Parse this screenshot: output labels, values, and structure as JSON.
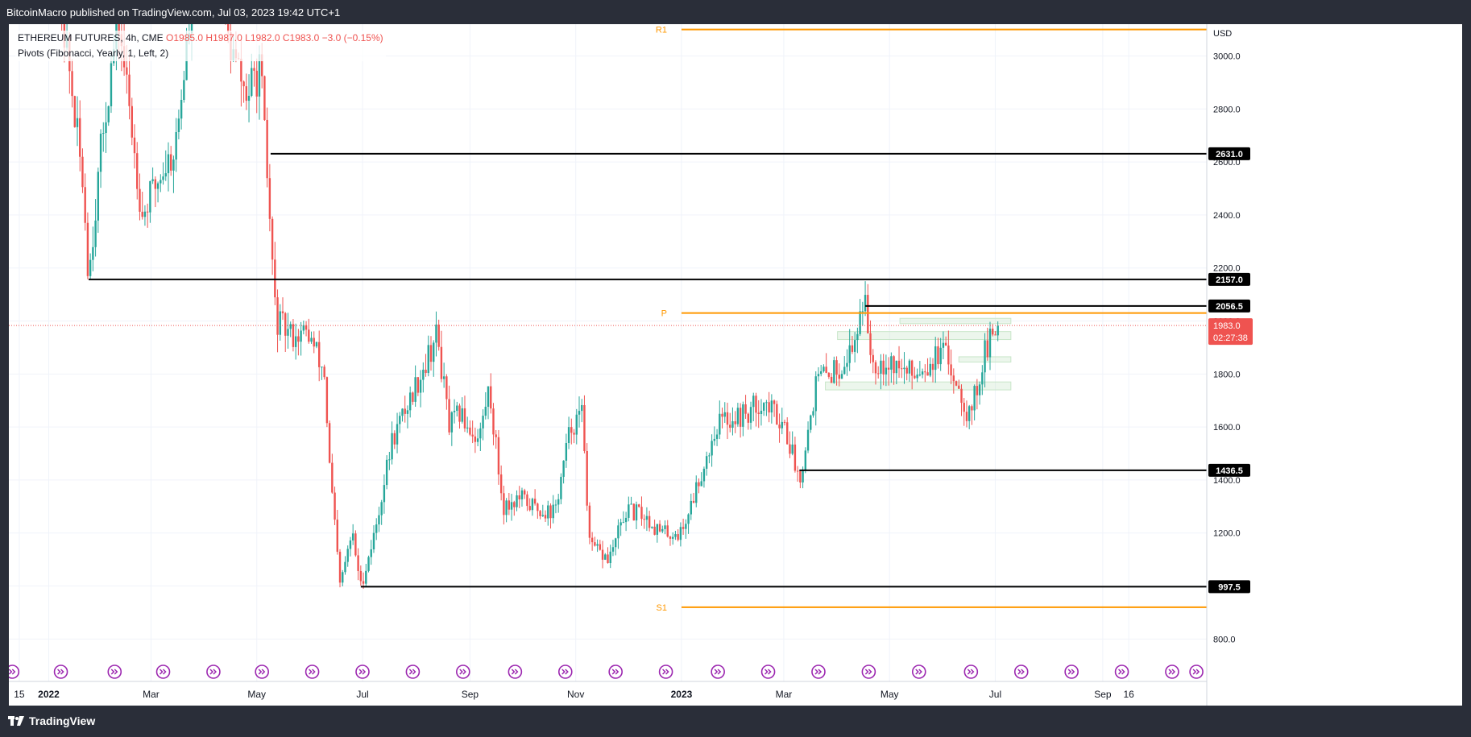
{
  "header": {
    "publisher": "BitcoinMacro published on TradingView.com, Jul 03, 2023 19:42 UTC+1"
  },
  "legend": {
    "symbol": "ETHEREUM FUTURES, 4h, CME",
    "ohlc_open": "O1985.0",
    "ohlc_high": "H1987.0",
    "ohlc_low": "L1982.0",
    "ohlc_close": "C1983.0",
    "change": "−3.0 (−0.15%)",
    "indicator": "Pivots (Fibonacci, Yearly, 1, Left, 2)"
  },
  "footer": {
    "brand": "TradingView"
  },
  "colors": {
    "up": "#26a69a",
    "down": "#ef5350",
    "pivot": "#ff9800",
    "level_line": "#000000",
    "grid": "#f0f3fa",
    "axis_text": "#131722",
    "current_price_bg": "#ef5350",
    "event_icon": "#9c27b0",
    "zone_fill": "#c8e6c9"
  },
  "chart_data": {
    "type": "candlestick",
    "currency": "USD",
    "ylim": [
      640,
      3120
    ],
    "y_ticks": [
      800,
      1000,
      1200,
      1400,
      1600,
      1800,
      2000,
      2200,
      2400,
      2600,
      2800,
      3000
    ],
    "y_tick_labels": [
      "800.0",
      "1000.0",
      "1200.0",
      "1400.0",
      "1600.0",
      "1800.0",
      "2000.0",
      "2200.0",
      "2400.0",
      "2600.0",
      "2800.0",
      "3000.0"
    ],
    "x_range": [
      "2021-12-09",
      "2023-10-31"
    ],
    "x_ticks": [
      {
        "date": "2021-12-15",
        "label": "15",
        "bold": false
      },
      {
        "date": "2022-01-01",
        "label": "2022",
        "bold": true
      },
      {
        "date": "2022-03-01",
        "label": "Mar",
        "bold": false
      },
      {
        "date": "2022-05-01",
        "label": "May",
        "bold": false
      },
      {
        "date": "2022-07-01",
        "label": "Jul",
        "bold": false
      },
      {
        "date": "2022-09-01",
        "label": "Sep",
        "bold": false
      },
      {
        "date": "2022-11-01",
        "label": "Nov",
        "bold": false
      },
      {
        "date": "2023-01-01",
        "label": "2023",
        "bold": true
      },
      {
        "date": "2023-03-01",
        "label": "Mar",
        "bold": false
      },
      {
        "date": "2023-05-01",
        "label": "May",
        "bold": false
      },
      {
        "date": "2023-07-01",
        "label": "Jul",
        "bold": false
      },
      {
        "date": "2023-09-01",
        "label": "Sep",
        "bold": false
      },
      {
        "date": "2023-09-16",
        "label": "16",
        "bold": false
      }
    ],
    "price_path": [
      [
        "2022-01-01",
        3550
      ],
      [
        "2022-01-10",
        3100
      ],
      [
        "2022-01-21",
        2500
      ],
      [
        "2022-01-24",
        2170
      ],
      [
        "2022-02-01",
        2700
      ],
      [
        "2022-02-10",
        3150
      ],
      [
        "2022-02-24",
        2400
      ],
      [
        "2022-03-06",
        2550
      ],
      [
        "2022-03-15",
        2650
      ],
      [
        "2022-03-28",
        3400
      ],
      [
        "2022-04-03",
        3550
      ],
      [
        "2022-04-15",
        3050
      ],
      [
        "2022-04-25",
        2850
      ],
      [
        "2022-05-03",
        2950
      ],
      [
        "2022-05-06",
        2650
      ],
      [
        "2022-05-12",
        2000
      ],
      [
        "2022-05-20",
        1950
      ],
      [
        "2022-05-31",
        1950
      ],
      [
        "2022-06-09",
        1800
      ],
      [
        "2022-06-12",
        1450
      ],
      [
        "2022-06-18",
        1000
      ],
      [
        "2022-06-25",
        1200
      ],
      [
        "2022-06-30",
        1000
      ],
      [
        "2022-07-08",
        1200
      ],
      [
        "2022-07-18",
        1550
      ],
      [
        "2022-07-28",
        1700
      ],
      [
        "2022-08-13",
        1950
      ],
      [
        "2022-08-20",
        1600
      ],
      [
        "2022-08-26",
        1650
      ],
      [
        "2022-09-06",
        1550
      ],
      [
        "2022-09-12",
        1750
      ],
      [
        "2022-09-20",
        1300
      ],
      [
        "2022-09-30",
        1330
      ],
      [
        "2022-10-10",
        1290
      ],
      [
        "2022-10-20",
        1280
      ],
      [
        "2022-10-29",
        1600
      ],
      [
        "2022-11-05",
        1650
      ],
      [
        "2022-11-09",
        1150
      ],
      [
        "2022-11-20",
        1100
      ],
      [
        "2022-11-30",
        1280
      ],
      [
        "2022-12-10",
        1270
      ],
      [
        "2022-12-20",
        1200
      ],
      [
        "2023-01-01",
        1200
      ],
      [
        "2023-01-12",
        1420
      ],
      [
        "2023-01-22",
        1620
      ],
      [
        "2023-02-08",
        1650
      ],
      [
        "2023-02-16",
        1700
      ],
      [
        "2023-03-01",
        1620
      ],
      [
        "2023-03-10",
        1400
      ],
      [
        "2023-03-20",
        1780
      ],
      [
        "2023-04-01",
        1820
      ],
      [
        "2023-04-10",
        1900
      ],
      [
        "2023-04-16",
        2100
      ],
      [
        "2023-04-21",
        1850
      ],
      [
        "2023-05-01",
        1850
      ],
      [
        "2023-05-12",
        1800
      ],
      [
        "2023-05-20",
        1830
      ],
      [
        "2023-06-01",
        1880
      ],
      [
        "2023-06-10",
        1760
      ],
      [
        "2023-06-15",
        1650
      ],
      [
        "2023-06-20",
        1730
      ],
      [
        "2023-06-25",
        1880
      ],
      [
        "2023-07-03",
        1983
      ]
    ],
    "horizontal_levels": [
      {
        "value": 2631.0,
        "label": "2631.0",
        "from": "2022-05-09"
      },
      {
        "value": 2157.0,
        "label": "2157.0",
        "from": "2022-01-24"
      },
      {
        "value": 2056.5,
        "label": "2056.5",
        "from": "2023-04-17"
      },
      {
        "value": 1436.5,
        "label": "1436.5",
        "from": "2023-03-10"
      },
      {
        "value": 997.5,
        "label": "997.5",
        "from": "2022-06-30"
      }
    ],
    "pivot_levels": [
      {
        "name": "R1",
        "value": 3100,
        "from": "2023-01-01"
      },
      {
        "name": "P",
        "value": 2030,
        "from": "2023-01-01"
      },
      {
        "name": "S1",
        "value": 920,
        "from": "2023-01-01"
      }
    ],
    "zones": [
      {
        "from": "2023-05-07",
        "to": "2023-07-10",
        "y1": 2010,
        "y2": 1990
      },
      {
        "from": "2023-04-01",
        "to": "2023-07-10",
        "y1": 1960,
        "y2": 1930
      },
      {
        "from": "2023-06-10",
        "to": "2023-07-10",
        "y1": 1865,
        "y2": 1845
      },
      {
        "from": "2023-03-25",
        "to": "2023-07-10",
        "y1": 1770,
        "y2": 1740
      }
    ],
    "current_price": {
      "value": 1983.0,
      "label": "1983.0",
      "countdown": "02:27:38"
    },
    "event_dates": [
      "2021-12-11",
      "2022-01-08",
      "2022-02-08",
      "2022-03-08",
      "2022-04-06",
      "2022-05-04",
      "2022-06-02",
      "2022-07-01",
      "2022-07-30",
      "2022-08-28",
      "2022-09-27",
      "2022-10-26",
      "2022-11-24",
      "2022-12-23",
      "2023-01-22",
      "2023-02-20",
      "2023-03-21",
      "2023-04-19",
      "2023-05-18",
      "2023-06-17",
      "2023-07-16",
      "2023-08-14",
      "2023-09-12",
      "2023-10-11",
      "2023-10-25"
    ]
  }
}
